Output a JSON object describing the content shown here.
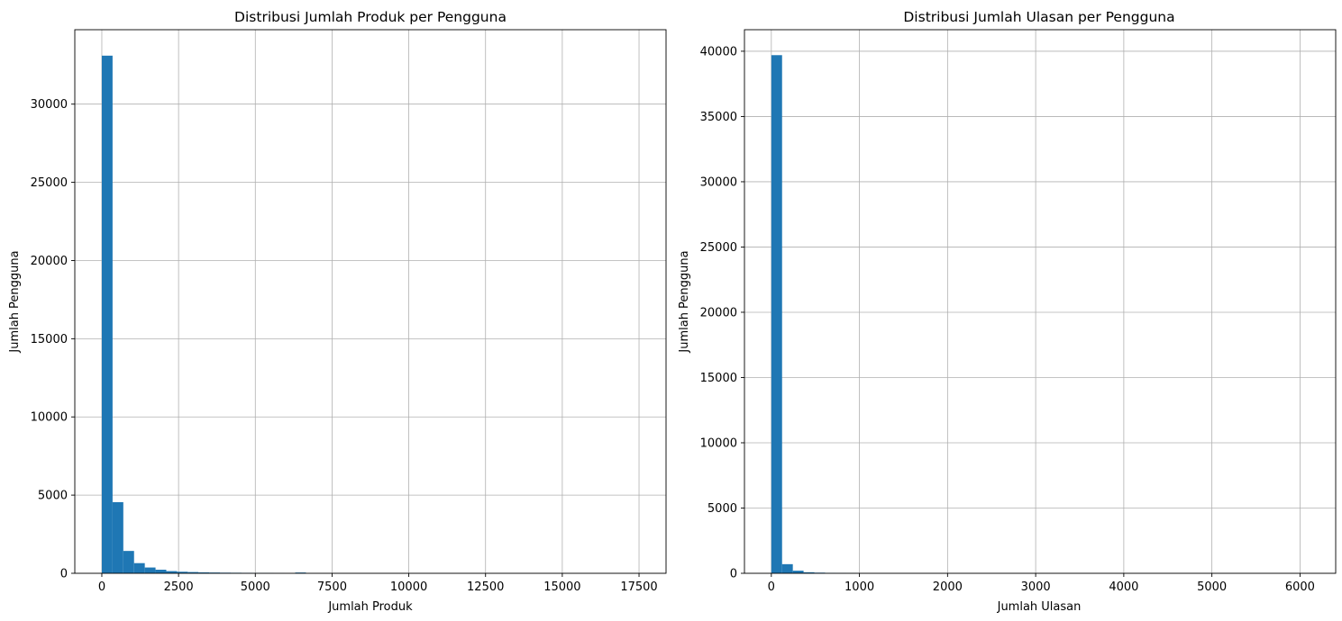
{
  "chart_data": [
    {
      "type": "bar",
      "histogram": true,
      "title": "Distribusi Jumlah Produk per Pengguna",
      "xlabel": "Jumlah Produk",
      "ylabel": "Jumlah Pengguna",
      "xlim": [
        -880,
        18380
      ],
      "ylim": [
        0,
        34760
      ],
      "xticks": [
        0,
        2500,
        5000,
        7500,
        10000,
        12500,
        15000,
        17500
      ],
      "xtick_labels": [
        "0",
        "2500",
        "5000",
        "7500",
        "10000",
        "12500",
        "15000",
        "17500"
      ],
      "yticks": [
        0,
        5000,
        10000,
        15000,
        20000,
        25000,
        30000
      ],
      "ytick_labels": [
        "0",
        "5000",
        "10000",
        "15000",
        "20000",
        "25000",
        "30000"
      ],
      "bin_start": 0,
      "bin_width": 350,
      "values": [
        33100,
        4550,
        1430,
        650,
        370,
        230,
        140,
        100,
        80,
        60,
        50,
        40,
        35,
        30,
        25,
        25,
        10,
        0,
        50
      ],
      "grid": true,
      "color": "#1f77b4"
    },
    {
      "type": "bar",
      "histogram": true,
      "title": "Distribusi Jumlah Ulasan per Pengguna",
      "xlabel": "Jumlah Ulasan",
      "ylabel": "Jumlah Pengguna",
      "xlim": [
        -305,
        6405
      ],
      "ylim": [
        0,
        41650
      ],
      "xticks": [
        0,
        1000,
        2000,
        3000,
        4000,
        5000,
        6000
      ],
      "xtick_labels": [
        "0",
        "1000",
        "2000",
        "3000",
        "4000",
        "5000",
        "6000"
      ],
      "yticks": [
        0,
        5000,
        10000,
        15000,
        20000,
        25000,
        30000,
        35000,
        40000
      ],
      "ytick_labels": [
        "0",
        "5000",
        "10000",
        "15000",
        "20000",
        "25000",
        "30000",
        "35000",
        "40000"
      ],
      "bin_start": 0,
      "bin_width": 122,
      "values": [
        39700,
        700,
        200,
        80,
        50,
        35,
        25,
        20
      ],
      "grid": true,
      "color": "#1f77b4"
    }
  ]
}
